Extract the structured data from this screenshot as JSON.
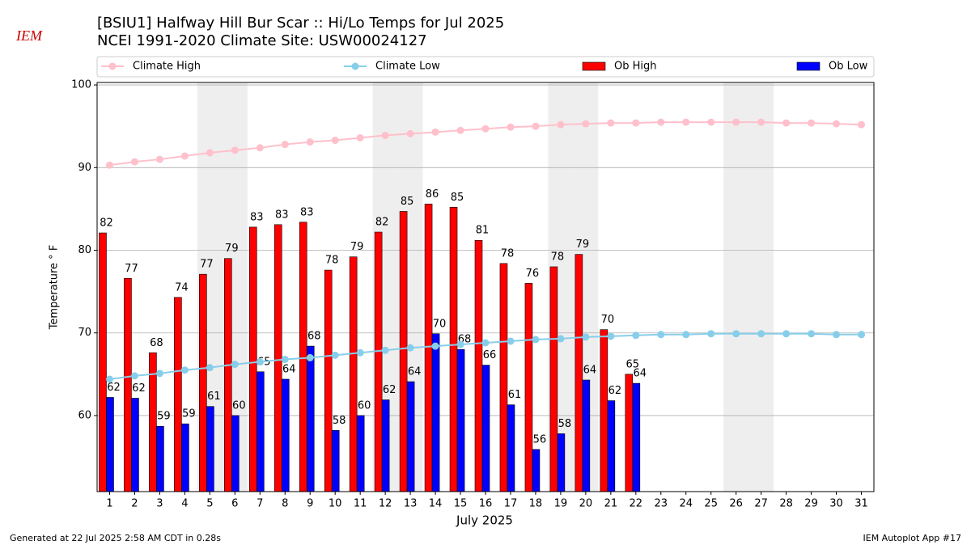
{
  "chart_data": {
    "type": "bar",
    "title": "[BSIU1] Halfway Hill Bur Scar :: Hi/Lo Temps for Jul 2025",
    "subtitle": "NCEI 1991-2020 Climate Site: USW00024127",
    "logo_text": "IEM",
    "ylabel": "Temperature ° F",
    "xlabel": "July 2025",
    "footer_left": "Generated at 22 Jul 2025 2:58 AM CDT in 0.28s",
    "footer_right": "IEM Autoplot App #17",
    "categories": [
      "1",
      "2",
      "3",
      "4",
      "5",
      "6",
      "7",
      "8",
      "9",
      "10",
      "11",
      "12",
      "13",
      "14",
      "15",
      "16",
      "17",
      "18",
      "19",
      "20",
      "21",
      "22",
      "23",
      "24",
      "25",
      "26",
      "27",
      "28",
      "29",
      "30",
      "31"
    ],
    "shaded_categories": [
      "5",
      "6",
      "12",
      "13",
      "19",
      "20",
      "26",
      "27"
    ],
    "ylim": [
      50.8,
      100.3
    ],
    "yticks": [
      60,
      70,
      80,
      90,
      100
    ],
    "grid": true,
    "legend": "top",
    "series": [
      {
        "name": "Climate High",
        "type": "line",
        "color": "#ffc0cb",
        "values": [
          90.3,
          90.7,
          91.0,
          91.4,
          91.8,
          92.1,
          92.4,
          92.8,
          93.1,
          93.3,
          93.6,
          93.9,
          94.1,
          94.3,
          94.5,
          94.7,
          94.9,
          95.0,
          95.2,
          95.3,
          95.4,
          95.4,
          95.5,
          95.5,
          95.5,
          95.5,
          95.5,
          95.4,
          95.4,
          95.3,
          95.2
        ]
      },
      {
        "name": "Climate Low",
        "type": "line",
        "color": "#87ceeb",
        "values": [
          64.4,
          64.8,
          65.1,
          65.5,
          65.8,
          66.2,
          66.5,
          66.8,
          67.0,
          67.3,
          67.6,
          67.9,
          68.2,
          68.4,
          68.6,
          68.8,
          69.0,
          69.2,
          69.3,
          69.5,
          69.6,
          69.7,
          69.8,
          69.8,
          69.9,
          69.9,
          69.9,
          69.9,
          69.9,
          69.8,
          69.8
        ]
      },
      {
        "name": "Ob High",
        "type": "bar",
        "color": "#ff0000",
        "values": [
          82.1,
          76.6,
          67.6,
          74.3,
          77.1,
          79.0,
          82.8,
          83.1,
          83.4,
          77.6,
          79.2,
          82.2,
          84.7,
          85.6,
          85.2,
          81.2,
          78.4,
          76.0,
          78.0,
          79.5,
          70.4,
          65.0,
          null,
          null,
          null,
          null,
          null,
          null,
          null,
          null,
          null
        ],
        "value_labels": [
          "82",
          "77",
          "68",
          "74",
          "77",
          "79",
          "83",
          "83",
          "83",
          "78",
          "79",
          "82",
          "85",
          "86",
          "85",
          "81",
          "78",
          "76",
          "78",
          "79",
          "70",
          "65",
          null,
          null,
          null,
          null,
          null,
          null,
          null,
          null,
          null
        ]
      },
      {
        "name": "Ob Low",
        "type": "bar",
        "color": "#0000ff",
        "values": [
          62.2,
          62.1,
          58.7,
          59.0,
          61.1,
          60.0,
          65.3,
          64.4,
          68.4,
          58.2,
          60.0,
          61.9,
          64.1,
          69.9,
          68.0,
          66.1,
          61.3,
          55.9,
          57.8,
          64.3,
          61.8,
          63.9,
          null,
          null,
          null,
          null,
          null,
          null,
          null,
          null,
          null
        ],
        "value_labels": [
          "62",
          "62",
          "59",
          "59",
          "61",
          "60",
          "65",
          "64",
          "68",
          "58",
          "60",
          "62",
          "64",
          "70",
          "68",
          "66",
          "61",
          "56",
          "58",
          "64",
          "62",
          "64",
          null,
          null,
          null,
          null,
          null,
          null,
          null,
          null,
          null
        ]
      }
    ]
  }
}
